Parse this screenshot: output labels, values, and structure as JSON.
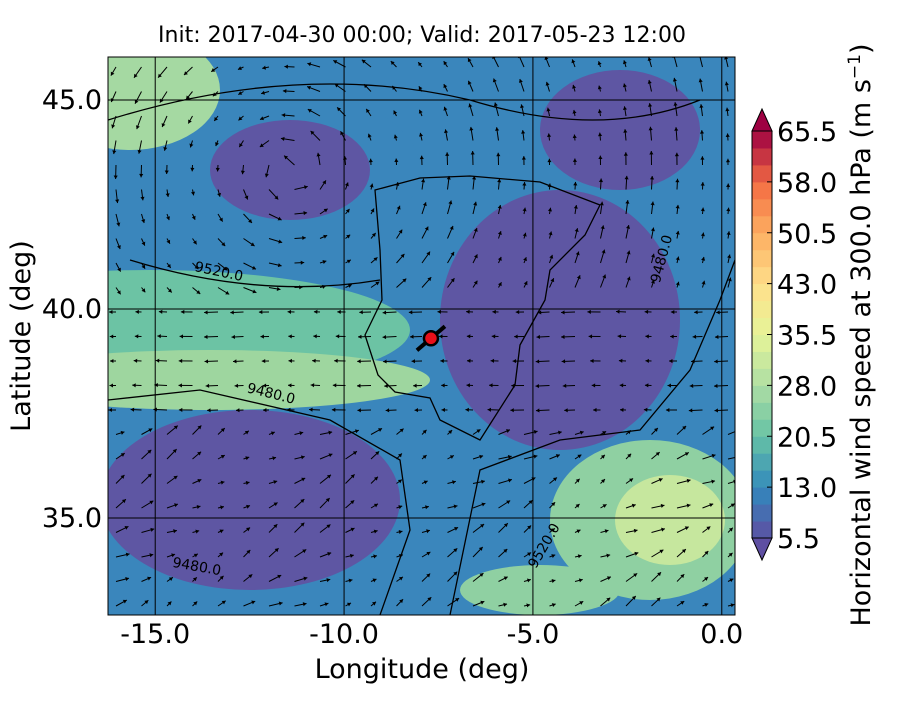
{
  "chart_data": {
    "type": "map",
    "title": "Init: 2017-04-30 00:00; Valid: 2017-05-23 12:00",
    "x_label": "Longitude (deg)",
    "y_label": "Latitude (deg)",
    "xlim": [
      -16.25,
      0.35
    ],
    "ylim": [
      32.68,
      46.03
    ],
    "xticks": [
      {
        "value": -15,
        "label": "-15.0"
      },
      {
        "value": -10,
        "label": "-10.0"
      },
      {
        "value": -5,
        "label": "-5.0"
      },
      {
        "value": 0,
        "label": "0.0"
      }
    ],
    "yticks": [
      {
        "value": 35,
        "label": "35.0"
      },
      {
        "value": 40,
        "label": "40.0"
      },
      {
        "value": 45,
        "label": "45.0"
      }
    ],
    "grid": true,
    "colorbar": {
      "label": "Horizontal wind speed at 300.0 hPa (m s",
      "label_sup": "−1",
      "label_end": ")",
      "lim": [
        5.5,
        65.5
      ],
      "ticks": [
        {
          "value": 5.5,
          "label": "5.5"
        },
        {
          "value": 13,
          "label": "13.0"
        },
        {
          "value": 20.5,
          "label": "20.5"
        },
        {
          "value": 28,
          "label": "28.0"
        },
        {
          "value": 35.5,
          "label": "35.5"
        },
        {
          "value": 43,
          "label": "43.0"
        },
        {
          "value": 50.5,
          "label": "50.5"
        },
        {
          "value": 58,
          "label": "58.0"
        },
        {
          "value": 65.5,
          "label": "65.5"
        }
      ]
    },
    "contour_labels": [
      "9520.0",
      "9480.0",
      "9480.0",
      "9480.0",
      "9520.0"
    ],
    "marker": {
      "x": -7.7,
      "y": 39.3,
      "color": "#e8101a"
    }
  }
}
